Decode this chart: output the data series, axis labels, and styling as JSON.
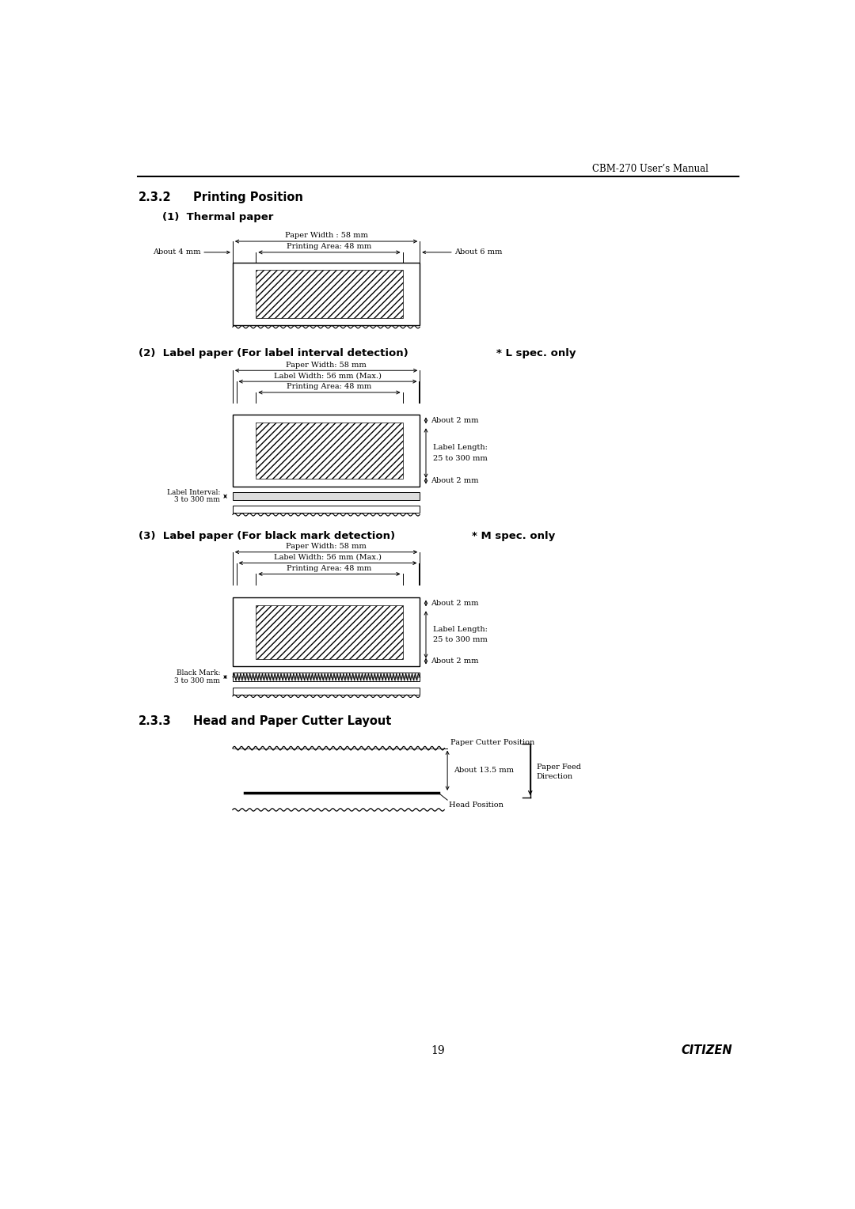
{
  "page_title": "CBM-270 User’s Manual",
  "page_number": "19",
  "page_brand": "CITIZEN",
  "bg_color": "#ffffff"
}
